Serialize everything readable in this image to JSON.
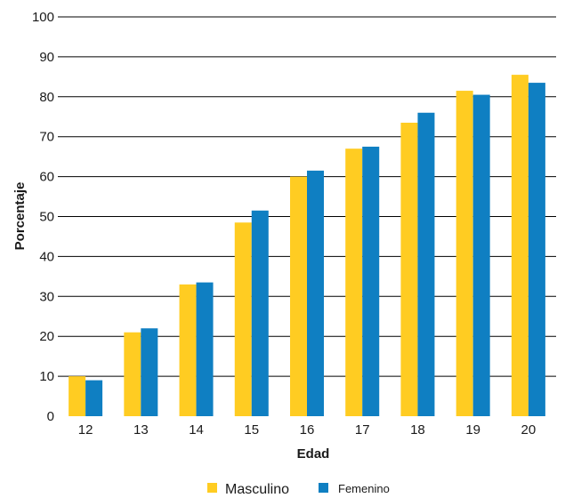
{
  "chart_data": {
    "type": "bar",
    "title": "",
    "xlabel": "Edad",
    "ylabel": "Porcentaje",
    "categories": [
      "12",
      "13",
      "14",
      "15",
      "16",
      "17",
      "18",
      "19",
      "20"
    ],
    "series": [
      {
        "name": "Masculino",
        "color": "#FFCC22",
        "values": [
          10,
          21,
          33,
          48.5,
          60,
          67,
          73.5,
          81.5,
          85.5
        ]
      },
      {
        "name": "Femenino",
        "color": "#0F7FC2",
        "values": [
          9,
          22,
          33.5,
          51.5,
          61.5,
          67.5,
          76,
          80.5,
          83.5
        ]
      }
    ],
    "ylim": [
      0,
      100
    ],
    "yticks": [
      "0",
      "10",
      "20",
      "30",
      "40",
      "50",
      "60",
      "70",
      "80",
      "90",
      "100"
    ],
    "grid": true,
    "legend": "bottom-center"
  }
}
